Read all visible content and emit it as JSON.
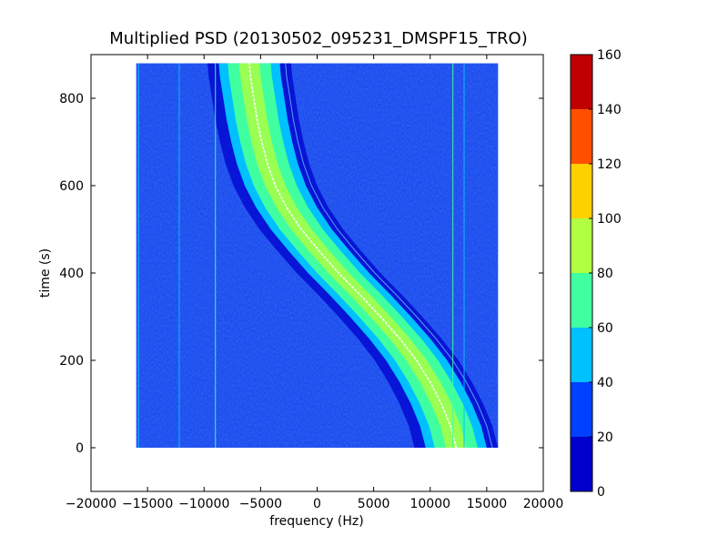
{
  "chart_data": {
    "type": "heatmap",
    "title": "Multiplied PSD (20130502_095231_DMSPF15_TRO)",
    "xlabel": "frequency (Hz)",
    "ylabel": "time (s)",
    "xlim": [
      -20000,
      20000
    ],
    "ylim": [
      -100,
      900
    ],
    "xticks": [
      -20000,
      -15000,
      -10000,
      -5000,
      0,
      5000,
      10000,
      15000,
      20000
    ],
    "xtick_labels": [
      "−20000",
      "−15000",
      "−10000",
      "−5000",
      "0",
      "5000",
      "10000",
      "15000",
      "20000"
    ],
    "yticks": [
      0,
      200,
      400,
      600,
      800
    ],
    "ytick_labels": [
      "0",
      "200",
      "400",
      "600",
      "800"
    ],
    "data_extent": {
      "x": [
        -16000,
        16000
      ],
      "y": [
        0,
        880
      ]
    },
    "colorbar": {
      "levels": [
        0,
        20,
        40,
        60,
        80,
        100,
        120,
        140,
        160
      ],
      "labels": [
        "0",
        "20",
        "40",
        "60",
        "80",
        "100",
        "120",
        "140",
        "160"
      ],
      "colors": [
        "#0000cd",
        "#0040ff",
        "#00c0ff",
        "#40ffa0",
        "#b0ff40",
        "#ffd000",
        "#ff5000",
        "#c00000"
      ]
    },
    "background_level_color": "#1a4cf0",
    "doppler_trace": {
      "description_time": [
        0,
        880
      ],
      "center_line": [
        {
          "t": 0,
          "f": 12300
        },
        {
          "t": 50,
          "f": 11800
        },
        {
          "t": 100,
          "f": 11000
        },
        {
          "t": 150,
          "f": 10000
        },
        {
          "t": 200,
          "f": 8800
        },
        {
          "t": 250,
          "f": 7300
        },
        {
          "t": 300,
          "f": 5600
        },
        {
          "t": 350,
          "f": 3800
        },
        {
          "t": 400,
          "f": 1900
        },
        {
          "t": 450,
          "f": 200
        },
        {
          "t": 500,
          "f": -1400
        },
        {
          "t": 550,
          "f": -2700
        },
        {
          "t": 600,
          "f": -3700
        },
        {
          "t": 650,
          "f": -4400
        },
        {
          "t": 700,
          "f": -4900
        },
        {
          "t": 750,
          "f": -5300
        },
        {
          "t": 800,
          "f": -5600
        },
        {
          "t": 850,
          "f": -5900
        },
        {
          "t": 880,
          "f": -6000
        }
      ]
    },
    "spectral_lines": [
      {
        "f": -15800,
        "level": 40
      },
      {
        "f": -12200,
        "level": 40
      },
      {
        "f": -9000,
        "level": 60
      },
      {
        "f": 12000,
        "level": 60
      },
      {
        "f": 13000,
        "level": 40
      }
    ]
  }
}
